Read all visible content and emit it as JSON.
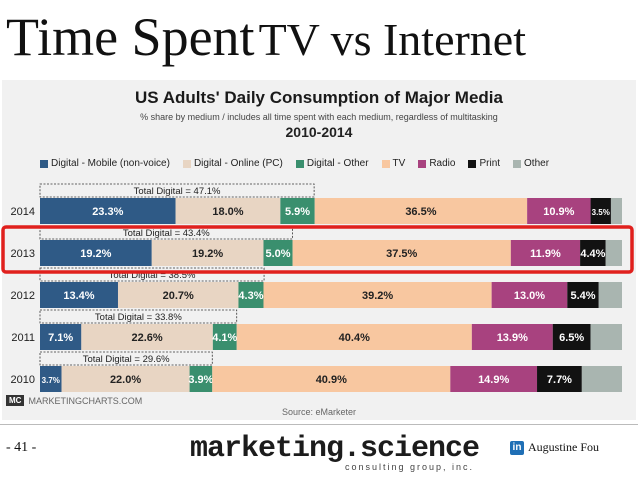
{
  "slide": {
    "title_part1": "Time Spent",
    "title_part2": "TV vs Internet",
    "page_number": "- 41 -",
    "company": "marketing.science",
    "tagline": "consulting group, inc.",
    "author": "Augustine Fou",
    "author_icon": "linkedin-icon"
  },
  "footer": {
    "brand_logo": "MC",
    "brand_name": "MARKETINGCHARTS.COM",
    "source": "Source: eMarketer"
  },
  "colors": {
    "mobile": "#2f5a86",
    "online": "#e8d5c3",
    "digital_other": "#3a8f6e",
    "tv": "#f8c7a0",
    "radio": "#a8427f",
    "print": "#121212",
    "other": "#a9b5b0",
    "highlight": "#e0201d"
  },
  "chart_data": {
    "type": "bar",
    "orientation": "horizontal",
    "stacked": true,
    "title": "US Adults' Daily Consumption of Major Media",
    "subtitle": "% share by medium / includes all time spent with each medium, regardless of multitasking",
    "period": "2010-2014",
    "legend_position": "top",
    "xlim": [
      0,
      100
    ],
    "categories": [
      "2014",
      "2013",
      "2012",
      "2011",
      "2010"
    ],
    "series": [
      {
        "name": "Digital - Mobile (non-voice)",
        "values": [
          23.3,
          19.2,
          13.4,
          7.1,
          3.7
        ],
        "labels": [
          "23.3%",
          "19.2%",
          "13.4%",
          "7.1%",
          "3.7%"
        ]
      },
      {
        "name": "Digital - Online (PC)",
        "values": [
          18.0,
          19.2,
          20.7,
          22.6,
          22.0
        ],
        "labels": [
          "18.0%",
          "19.2%",
          "20.7%",
          "22.6%",
          "22.0%"
        ]
      },
      {
        "name": "Digital - Other",
        "values": [
          5.9,
          5.0,
          4.3,
          4.1,
          3.9
        ],
        "labels": [
          "5.9%",
          "5.0%",
          "4.3%",
          "4.1%",
          "3.9%"
        ]
      },
      {
        "name": "TV",
        "values": [
          36.5,
          37.5,
          39.2,
          40.4,
          40.9
        ],
        "labels": [
          "36.5%",
          "37.5%",
          "39.2%",
          "40.4%",
          "40.9%"
        ]
      },
      {
        "name": "Radio",
        "values": [
          10.9,
          11.9,
          13.0,
          13.9,
          14.9
        ],
        "labels": [
          "10.9%",
          "11.9%",
          "13.0%",
          "13.9%",
          "14.9%"
        ]
      },
      {
        "name": "Print",
        "values": [
          3.5,
          4.4,
          5.4,
          6.5,
          7.7
        ],
        "labels": [
          "3.5%",
          "4.4%",
          "5.4%",
          "6.5%",
          "7.7%"
        ]
      },
      {
        "name": "Other",
        "values": [
          1.9,
          2.8,
          4.0,
          5.4,
          6.9
        ],
        "labels": [
          "",
          "",
          "",
          "",
          ""
        ]
      }
    ],
    "annotations": [
      {
        "category": "2014",
        "text": "Total Digital = 47.1%",
        "value": 47.1
      },
      {
        "category": "2013",
        "text": "Total Digital = 43.4%",
        "value": 43.4
      },
      {
        "category": "2012",
        "text": "Total Digital = 38.5%",
        "value": 38.5
      },
      {
        "category": "2011",
        "text": "Total Digital = 33.8%",
        "value": 33.8
      },
      {
        "category": "2010",
        "text": "Total Digital = 29.6%",
        "value": 29.6
      }
    ],
    "highlighted_category": "2013"
  }
}
